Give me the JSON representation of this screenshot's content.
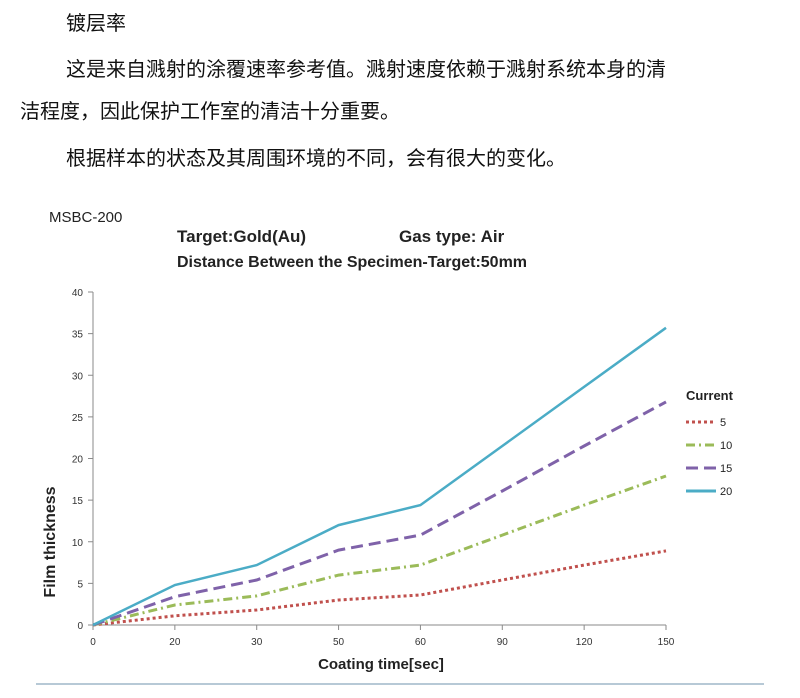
{
  "document": {
    "heading": "镀层率",
    "paragraph1_line1": "这是来自溅射的涂覆速率参考值。溅射速度依赖于溅射系统本身的清",
    "paragraph1_line2": "洁程度，因此保护工作室的清洁十分重要。",
    "paragraph2": "根据样本的状态及其周围环境的不同，会有很大的变化。"
  },
  "chart_data": {
    "type": "line",
    "model_label": "MSBC-200",
    "title_line1_left": "Target:Gold(Au)",
    "title_line1_right": "Gas type:  Air",
    "title_line2": "Distance Between the Specimen-Target:50mm",
    "xlabel": "Coating time[sec]",
    "ylabel": "Film thickness",
    "categories": [
      "0",
      "20",
      "30",
      "50",
      "60",
      "90",
      "120",
      "150"
    ],
    "ylim": [
      0,
      40
    ],
    "yticks": [
      0,
      5,
      10,
      15,
      20,
      25,
      30,
      35,
      40
    ],
    "grid": false,
    "legend_title": "Current",
    "legend_position": "right",
    "series": [
      {
        "name": "5",
        "color": "#c0504d",
        "style": "dotted",
        "values": [
          0,
          1.1,
          1.8,
          3.0,
          3.6,
          5.4,
          7.2,
          8.9
        ]
      },
      {
        "name": "10",
        "color": "#9bbb59",
        "style": "dashdot",
        "values": [
          0,
          2.4,
          3.5,
          6.0,
          7.2,
          10.8,
          14.4,
          17.9
        ]
      },
      {
        "name": "15",
        "color": "#7f62a9",
        "style": "dashed",
        "values": [
          0,
          3.4,
          5.4,
          9.0,
          10.8,
          16.1,
          21.5,
          26.8
        ]
      },
      {
        "name": "20",
        "color": "#4bacc6",
        "style": "solid",
        "values": [
          0,
          4.8,
          7.2,
          12.0,
          14.4,
          21.5,
          28.6,
          35.7
        ]
      }
    ]
  }
}
